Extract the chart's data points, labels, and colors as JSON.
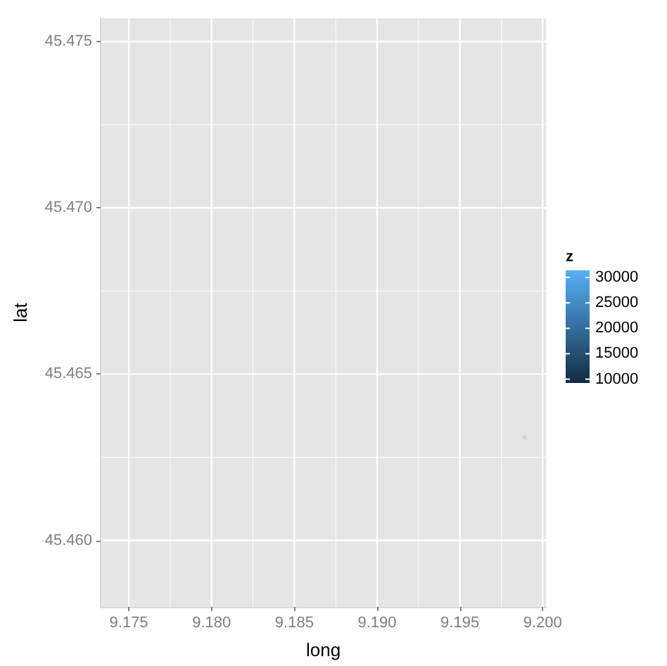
{
  "chart_data": {
    "type": "scatter",
    "xlabel": "long",
    "ylabel": "lat",
    "clabel": "z",
    "x": [
      9.1989
    ],
    "values": [
      45.4631
    ],
    "color": "#cfcfcf",
    "marker": "square",
    "xlim": [
      9.1733,
      9.2002
    ],
    "ylim": [
      45.458,
      45.4757
    ],
    "xticks": [
      9.175,
      {
        "value": 9.18,
        "label": "9.180"
      },
      9.185,
      {
        "value": 9.19,
        "label": "9.190"
      },
      9.195,
      {
        "value": 9.2,
        "label": "9.200"
      }
    ],
    "yticks": [
      {
        "value": 45.46,
        "label": "45.460"
      },
      45.465,
      {
        "value": 45.47,
        "label": "45.470"
      },
      45.475
    ],
    "clim": [
      9250,
      31400
    ],
    "cticks": [
      10000,
      15000,
      20000,
      25000,
      30000
    ],
    "grid": true
  }
}
